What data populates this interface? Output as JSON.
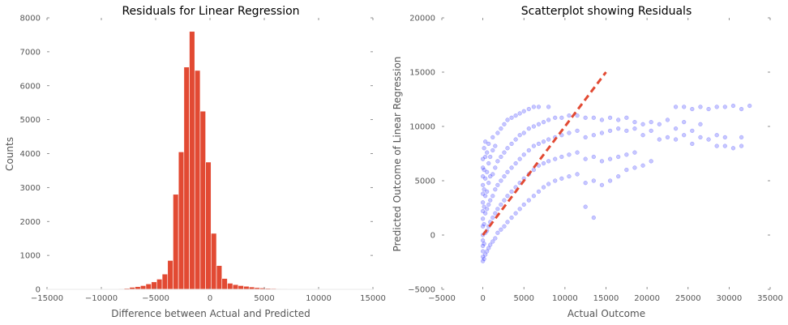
{
  "chart_data": [
    {
      "type": "bar",
      "title": "Residuals for Linear Regression",
      "xlabel": "Difference between Actual and Predicted",
      "ylabel": "Counts",
      "xlim": [
        -15000,
        15000
      ],
      "ylim": [
        0,
        8000
      ],
      "xticks": [
        "−15000",
        "−10000",
        "−5000",
        "0",
        "5000",
        "10000",
        "15000"
      ],
      "yticks": [
        "0",
        "1000",
        "2000",
        "3000",
        "4000",
        "5000",
        "6000",
        "7000",
        "8000"
      ],
      "bin_edges": [
        -8400,
        -7900,
        -7400,
        -6900,
        -6400,
        -5900,
        -5400,
        -4900,
        -4400,
        -3900,
        -3400,
        -2900,
        -2400,
        -1900,
        -1400,
        -900,
        -400,
        100,
        600,
        1100,
        1600,
        2100,
        2600,
        3100,
        3600,
        4100,
        4600,
        5100,
        5600,
        6100,
        6600,
        7100,
        7600,
        8100,
        8600,
        9100,
        9600,
        10100,
        10600,
        11100,
        11600,
        12100,
        12600,
        13100
      ],
      "counts": [
        20,
        30,
        60,
        80,
        110,
        160,
        220,
        300,
        450,
        850,
        2800,
        4050,
        6550,
        7600,
        6450,
        5250,
        3750,
        1650,
        700,
        320,
        180,
        140,
        110,
        90,
        70,
        50,
        40,
        30,
        25,
        20,
        15,
        10,
        8,
        8,
        6,
        5,
        5,
        5,
        5,
        4,
        3,
        2,
        2
      ],
      "bar_color": "#e24a33",
      "grid": false
    },
    {
      "type": "scatter",
      "title": "Scatterplot showing Residuals",
      "xlabel": "Actual Outcome",
      "ylabel": "Predicted Outcome of Linear Regression",
      "xlim": [
        -5000,
        35000
      ],
      "ylim": [
        -5000,
        20000
      ],
      "xticks": [
        "−5000",
        "0",
        "5000",
        "10000",
        "15000",
        "20000",
        "25000",
        "30000",
        "35000"
      ],
      "yticks": [
        "−5000",
        "0",
        "5000",
        "10000",
        "15000",
        "20000"
      ],
      "point_color": "#0000ff",
      "reference_line": {
        "x": [
          0,
          15000
        ],
        "y": [
          0,
          15000
        ],
        "color": "#e24a33",
        "style": "dashed"
      },
      "points": [
        [
          0,
          -2400
        ],
        [
          0,
          -2000
        ],
        [
          0,
          -1500
        ],
        [
          0,
          -1000
        ],
        [
          0,
          -500
        ],
        [
          0,
          0
        ],
        [
          0,
          800
        ],
        [
          0,
          1500
        ],
        [
          0,
          2200
        ],
        [
          0,
          3000
        ],
        [
          0,
          3800
        ],
        [
          0,
          4600
        ],
        [
          0,
          5400
        ],
        [
          0,
          6200
        ],
        [
          0,
          7000
        ],
        [
          150,
          -2200
        ],
        [
          150,
          -800
        ],
        [
          150,
          1000
        ],
        [
          150,
          2600
        ],
        [
          150,
          4200
        ],
        [
          150,
          6000
        ],
        [
          150,
          8000
        ],
        [
          300,
          -1800
        ],
        [
          300,
          200
        ],
        [
          300,
          2000
        ],
        [
          300,
          3600
        ],
        [
          300,
          5200
        ],
        [
          300,
          7200
        ],
        [
          300,
          8600
        ],
        [
          500,
          -1500
        ],
        [
          500,
          400
        ],
        [
          500,
          2400
        ],
        [
          500,
          4000
        ],
        [
          500,
          5800
        ],
        [
          500,
          7600
        ],
        [
          700,
          -1200
        ],
        [
          700,
          800
        ],
        [
          700,
          2800
        ],
        [
          700,
          4800
        ],
        [
          700,
          6600
        ],
        [
          700,
          8400
        ],
        [
          900,
          -900
        ],
        [
          900,
          1200
        ],
        [
          900,
          3200
        ],
        [
          900,
          5400
        ],
        [
          900,
          7200
        ],
        [
          1200,
          -600
        ],
        [
          1200,
          1600
        ],
        [
          1200,
          3600
        ],
        [
          1200,
          5600
        ],
        [
          1200,
          7800
        ],
        [
          1200,
          9000
        ],
        [
          1500,
          -300
        ],
        [
          1500,
          2000
        ],
        [
          1500,
          4200
        ],
        [
          1500,
          6200
        ],
        [
          1500,
          8200
        ],
        [
          1800,
          200
        ],
        [
          1800,
          2400
        ],
        [
          1800,
          4600
        ],
        [
          1800,
          6800
        ],
        [
          1800,
          9400
        ],
        [
          2200,
          500
        ],
        [
          2200,
          2800
        ],
        [
          2200,
          5000
        ],
        [
          2200,
          7200
        ],
        [
          2200,
          9800
        ],
        [
          2600,
          800
        ],
        [
          2600,
          3200
        ],
        [
          2600,
          5400
        ],
        [
          2600,
          7600
        ],
        [
          2600,
          10200
        ],
        [
          3000,
          1200
        ],
        [
          3000,
          3600
        ],
        [
          3000,
          5800
        ],
        [
          3000,
          8000
        ],
        [
          3000,
          10600
        ],
        [
          3500,
          1600
        ],
        [
          3500,
          4000
        ],
        [
          3500,
          6200
        ],
        [
          3500,
          8400
        ],
        [
          3500,
          10800
        ],
        [
          4000,
          2000
        ],
        [
          4000,
          4400
        ],
        [
          4000,
          6600
        ],
        [
          4000,
          8800
        ],
        [
          4000,
          11000
        ],
        [
          4500,
          2400
        ],
        [
          4500,
          4800
        ],
        [
          4500,
          7000
        ],
        [
          4500,
          9200
        ],
        [
          4500,
          11200
        ],
        [
          5000,
          2800
        ],
        [
          5000,
          5200
        ],
        [
          5000,
          7400
        ],
        [
          5000,
          9400
        ],
        [
          5000,
          11400
        ],
        [
          5600,
          3200
        ],
        [
          5600,
          5600
        ],
        [
          5600,
          7800
        ],
        [
          5600,
          9800
        ],
        [
          5600,
          11600
        ],
        [
          6200,
          3600
        ],
        [
          6200,
          6000
        ],
        [
          6200,
          8200
        ],
        [
          6200,
          10000
        ],
        [
          6200,
          11800
        ],
        [
          6800,
          4000
        ],
        [
          6800,
          6400
        ],
        [
          6800,
          8400
        ],
        [
          6800,
          10200
        ],
        [
          6800,
          11800
        ],
        [
          7400,
          4400
        ],
        [
          7400,
          6600
        ],
        [
          7400,
          8600
        ],
        [
          7400,
          10400
        ],
        [
          8000,
          4700
        ],
        [
          8000,
          6800
        ],
        [
          8000,
          8800
        ],
        [
          8000,
          10600
        ],
        [
          8000,
          11800
        ],
        [
          8800,
          5000
        ],
        [
          8800,
          7000
        ],
        [
          8800,
          9000
        ],
        [
          8800,
          10800
        ],
        [
          9600,
          5200
        ],
        [
          9600,
          7200
        ],
        [
          9600,
          9200
        ],
        [
          9600,
          10800
        ],
        [
          10500,
          5400
        ],
        [
          10500,
          7400
        ],
        [
          10500,
          9400
        ],
        [
          10500,
          11000
        ],
        [
          11500,
          5600
        ],
        [
          11500,
          7600
        ],
        [
          11500,
          9600
        ],
        [
          11500,
          11000
        ],
        [
          12500,
          2600
        ],
        [
          12500,
          4800
        ],
        [
          12500,
          7000
        ],
        [
          12500,
          9000
        ],
        [
          12500,
          10800
        ],
        [
          13500,
          1600
        ],
        [
          13500,
          5000
        ],
        [
          13500,
          7200
        ],
        [
          13500,
          9200
        ],
        [
          13500,
          10800
        ],
        [
          14500,
          4600
        ],
        [
          14500,
          6800
        ],
        [
          14500,
          9400
        ],
        [
          14500,
          10600
        ],
        [
          15500,
          5000
        ],
        [
          15500,
          7000
        ],
        [
          15500,
          9600
        ],
        [
          15500,
          10800
        ],
        [
          16500,
          5400
        ],
        [
          16500,
          7200
        ],
        [
          16500,
          9800
        ],
        [
          16500,
          10600
        ],
        [
          17500,
          6000
        ],
        [
          17500,
          7400
        ],
        [
          17500,
          9600
        ],
        [
          17500,
          10800
        ],
        [
          18500,
          6200
        ],
        [
          18500,
          7600
        ],
        [
          18500,
          9800
        ],
        [
          18500,
          10400
        ],
        [
          19500,
          6400
        ],
        [
          19500,
          9200
        ],
        [
          19500,
          10200
        ],
        [
          20500,
          6800
        ],
        [
          20500,
          9600
        ],
        [
          20500,
          10400
        ],
        [
          21500,
          8800
        ],
        [
          21500,
          10200
        ],
        [
          22500,
          9000
        ],
        [
          22500,
          10600
        ],
        [
          23500,
          8800
        ],
        [
          23500,
          9800
        ],
        [
          23500,
          11800
        ],
        [
          24500,
          9200
        ],
        [
          24500,
          10400
        ],
        [
          24500,
          11800
        ],
        [
          25500,
          8400
        ],
        [
          25500,
          9600
        ],
        [
          25500,
          11600
        ],
        [
          26500,
          9000
        ],
        [
          26500,
          10200
        ],
        [
          26500,
          11800
        ],
        [
          27500,
          8800
        ],
        [
          27500,
          11600
        ],
        [
          28500,
          8200
        ],
        [
          28500,
          9200
        ],
        [
          28500,
          11800
        ],
        [
          29500,
          8200
        ],
        [
          29500,
          9000
        ],
        [
          29500,
          11800
        ],
        [
          30500,
          8000
        ],
        [
          30500,
          11900
        ],
        [
          31500,
          8200
        ],
        [
          31500,
          9000
        ],
        [
          31500,
          11600
        ],
        [
          32500,
          11900
        ]
      ]
    }
  ]
}
